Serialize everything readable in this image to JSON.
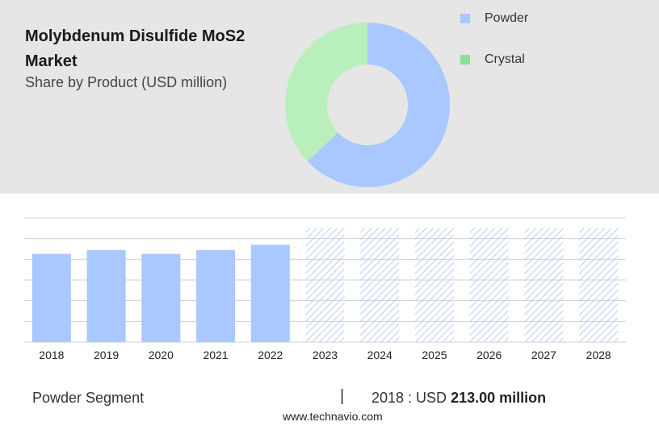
{
  "header": {
    "title": "Molybdenum Disulfide MoS2 Market",
    "subtitle": "Share by Product (USD million)"
  },
  "legend": {
    "items": [
      {
        "label": "Powder",
        "color": "#a9c8ff"
      },
      {
        "label": "Crystal",
        "color": "#86e49a"
      }
    ]
  },
  "colors": {
    "powder": "#a9c8ff",
    "crystal": "#b8efbb",
    "forecast_hatch": "#b7cdf6",
    "grid": "#d0d0d0"
  },
  "chart_data": [
    {
      "type": "pie",
      "variant": "donut",
      "title": "",
      "labels": [
        "Powder",
        "Crystal"
      ],
      "values": [
        63,
        37
      ]
    },
    {
      "type": "bar",
      "title": "",
      "xlabel": "",
      "ylabel": "",
      "categories": [
        "2018",
        "2019",
        "2020",
        "2021",
        "2022",
        "2023",
        "2024",
        "2025",
        "2026",
        "2027",
        "2028"
      ],
      "series": [
        {
          "values": [
            213,
            222,
            213,
            222,
            235,
            275,
            275,
            275,
            275,
            275,
            275
          ]
        }
      ],
      "forecast_from": "2023",
      "ylim": [
        0,
        300
      ],
      "grid": true
    }
  ],
  "footer": {
    "segment": "Powder Segment",
    "divider": "|",
    "value_prefix": "2018 : USD",
    "value": "213.00 million",
    "source": "www.technavio.com"
  }
}
